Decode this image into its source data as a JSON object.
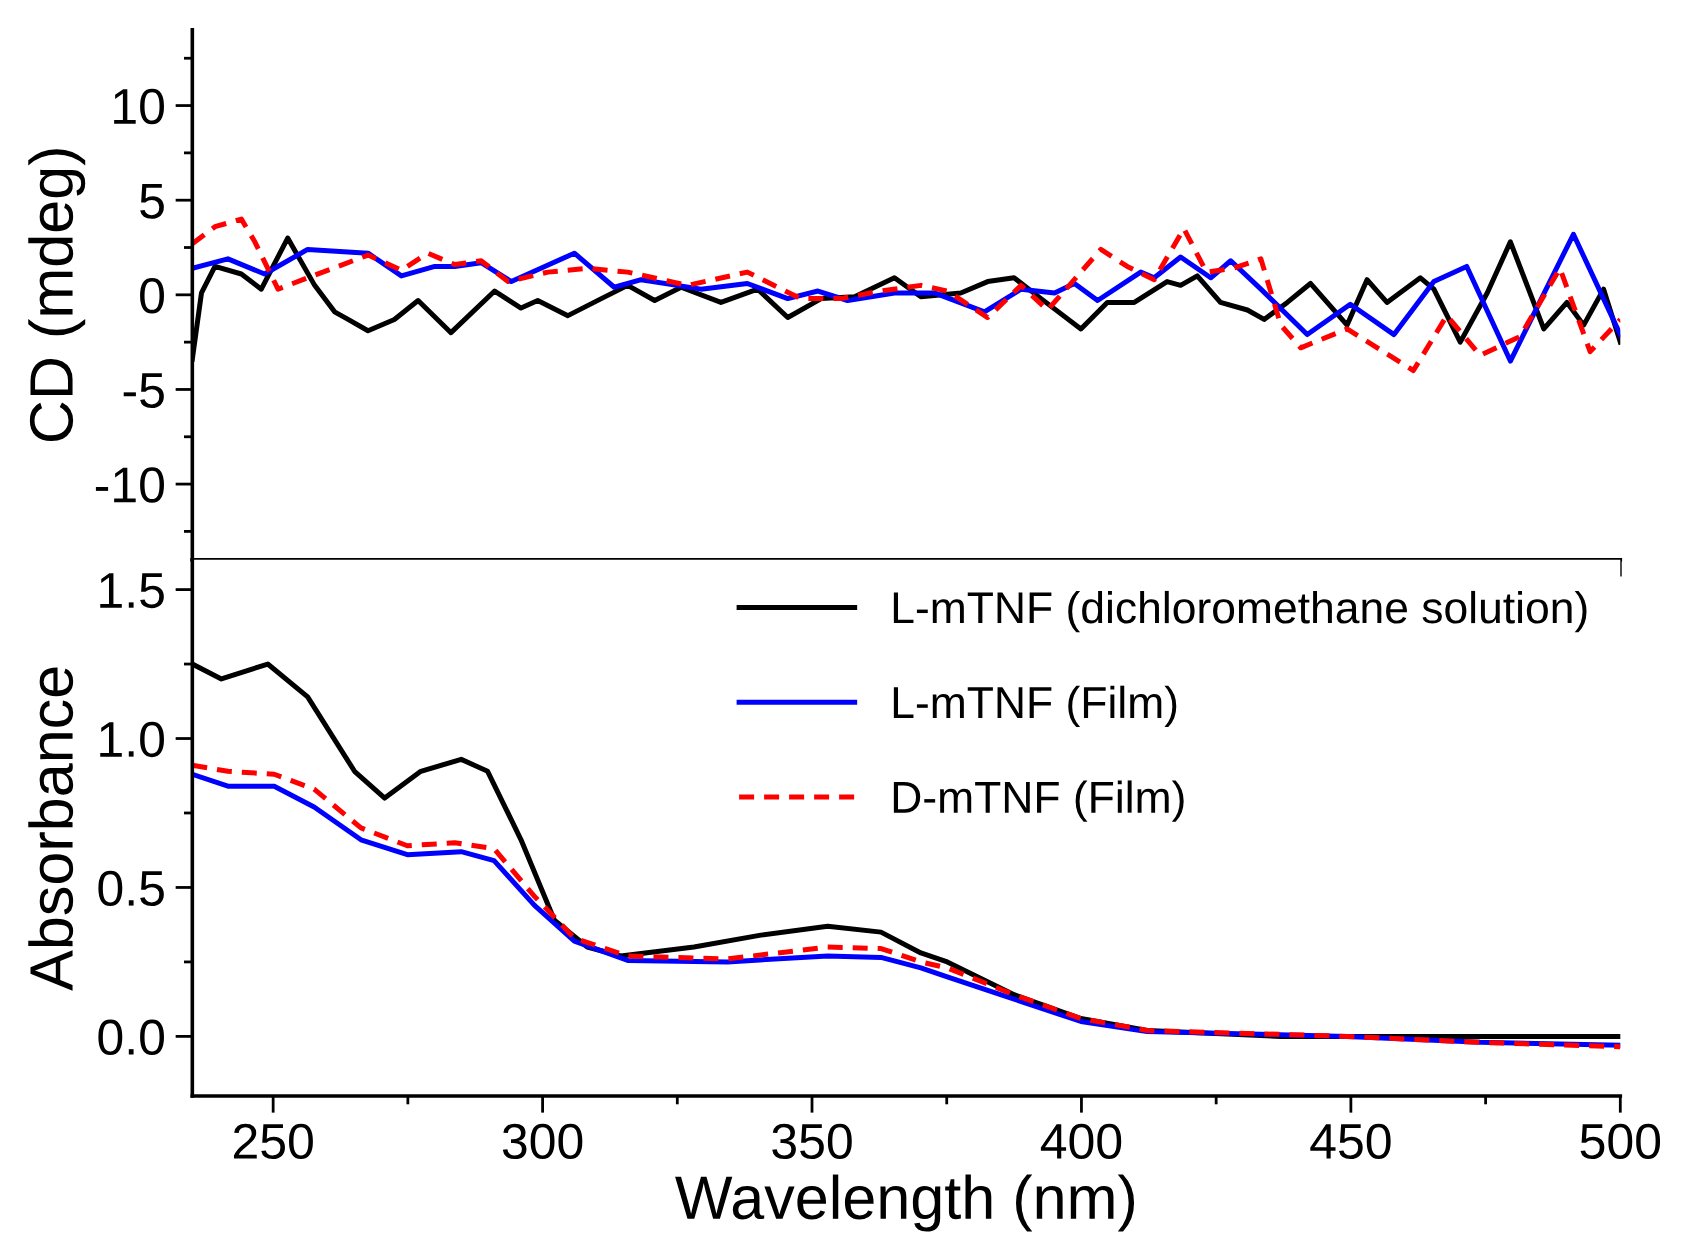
{
  "chart_data": [
    {
      "type": "line",
      "ylabel": "CD (mdeg)",
      "xlim": [
        235,
        500
      ],
      "ylim": [
        -14,
        14
      ],
      "xticks": [
        250,
        300,
        350,
        400,
        450,
        500
      ],
      "yticks": [
        {
          "value": -12.5,
          "label": null
        },
        -10,
        {
          "value": -7.5,
          "label": null
        },
        -5,
        {
          "value": -2.5,
          "label": null
        },
        0,
        {
          "value": 2.5,
          "label": null
        },
        5,
        {
          "value": 7.5,
          "label": null
        },
        10,
        {
          "value": 12.5,
          "label": null
        }
      ],
      "tick_labels": "y",
      "grid": false,
      "legend": false,
      "series": [
        {
          "color": "#000000",
          "line_style": "solid",
          "x": [
            235,
            236.7,
            239.2,
            244.1,
            247.8,
            252.7,
            257.7,
            261.4,
            263.9,
            267.6,
            272.5,
            276.9,
            283,
            291.1,
            296,
            299.1,
            304.7,
            310.9,
            315.8,
            320.8,
            325.7,
            333.1,
            339.9,
            345.5,
            351.7,
            357.9,
            365.3,
            370.2,
            377.6,
            382.6,
            387.5,
            392.5,
            399.9,
            404.8,
            409.8,
            415.9,
            418.4,
            421.5,
            425.8,
            430.8,
            433.9,
            438.2,
            442.5,
            449.3,
            453,
            456.7,
            462.9,
            465.4,
            470.3,
            475.3,
            479.6,
            485.8,
            490.1,
            493.2,
            496.9,
            500
          ],
          "values": [
            -3.4,
            0.1,
            1.5,
            1.1,
            0.3,
            3.0,
            0.5,
            -0.9,
            -1.3,
            -1.9,
            -1.3,
            -0.3,
            -2.0,
            0.2,
            -0.7,
            -0.3,
            -1.1,
            -0.2,
            0.5,
            -0.3,
            0.4,
            -0.4,
            0.3,
            -1.2,
            -0.2,
            -0.1,
            0.9,
            -0.1,
            0.1,
            0.7,
            0.9,
            -0.2,
            -1.8,
            -0.4,
            -0.4,
            0.7,
            0.5,
            1.0,
            -0.4,
            -0.8,
            -1.3,
            -0.4,
            0.6,
            -1.6,
            0.8,
            -0.4,
            0.9,
            0.3,
            -2.5,
            0.1,
            2.8,
            -1.8,
            -0.4,
            -1.6,
            0.3,
            -2.5
          ]
        },
        {
          "color": "#0000ff",
          "line_style": "solid",
          "x": [
            235,
            241.6,
            248.4,
            256.4,
            267.6,
            273.8,
            280,
            283.7,
            288.6,
            294.2,
            305.9,
            313.3,
            318.3,
            329.4,
            338,
            345.5,
            351.1,
            356.6,
            365.3,
            372.7,
            382,
            388.8,
            395,
            398.7,
            403,
            411,
            413.5,
            418.4,
            424,
            427.7,
            433.3,
            441.9,
            449.9,
            458,
            465.4,
            471.5,
            479.6,
            491.3,
            500
          ],
          "values": [
            1.4,
            1.9,
            1.1,
            2.4,
            2.2,
            1.0,
            1.5,
            1.5,
            1.7,
            0.7,
            2.2,
            0.4,
            0.8,
            0.3,
            0.6,
            -0.2,
            0.2,
            -0.3,
            0.1,
            0.1,
            -0.9,
            0.3,
            0.1,
            0.6,
            -0.3,
            1.2,
            0.9,
            2.0,
            0.9,
            1.8,
            0.3,
            -2.1,
            -0.5,
            -2.1,
            0.7,
            1.5,
            -3.5,
            3.2,
            -2.1
          ]
        },
        {
          "color": "#ff0000",
          "line_style": "dashed",
          "x": [
            235,
            239.2,
            244.1,
            246.6,
            250.9,
            256.4,
            267.6,
            273.8,
            278.7,
            283.7,
            288.6,
            293.6,
            301,
            308.4,
            315.8,
            326.9,
            338,
            347.9,
            355.3,
            362.8,
            370.2,
            375.1,
            382.6,
            388.8,
            393.7,
            403.6,
            408.5,
            413.5,
            419,
            423.2,
            428.2,
            433.3,
            437,
            440.7,
            449.3,
            461.6,
            467.8,
            474,
            481.4,
            488.8,
            494.4,
            500
          ],
          "values": [
            2.7,
            3.6,
            4.0,
            2.8,
            0.3,
            0.9,
            2.1,
            1.3,
            2.2,
            1.6,
            1.8,
            0.7,
            1.2,
            1.4,
            1.2,
            0.5,
            1.2,
            -0.2,
            -0.2,
            0.2,
            0.5,
            0.2,
            -1.2,
            0.5,
            -0.8,
            2.4,
            1.5,
            0.8,
            3.5,
            1.2,
            1.4,
            1.9,
            -1.6,
            -2.8,
            -1.8,
            -4.0,
            -1.1,
            -3.2,
            -2.2,
            1.4,
            -3.0,
            -1.3
          ]
        }
      ]
    },
    {
      "type": "line",
      "xlabel": "Wavelength (nm)",
      "ylabel": "Absorbance",
      "xlim": [
        235,
        500
      ],
      "ylim": [
        -0.2,
        1.6
      ],
      "xticks": [
        250,
        {
          "value": 275,
          "label": null
        },
        300,
        {
          "value": 325,
          "label": null
        },
        350,
        {
          "value": 375,
          "label": null
        },
        400,
        {
          "value": 425,
          "label": null
        },
        450,
        {
          "value": 475,
          "label": null
        },
        500
      ],
      "yticks": [
        {
          "value": 0,
          "label": "0.0"
        },
        {
          "value": 0.25,
          "label": null
        },
        0.5,
        {
          "value": 0.75,
          "label": null
        },
        {
          "value": 1,
          "label": "1.0"
        },
        {
          "value": 1.25,
          "label": null
        },
        1.5
      ],
      "grid": false,
      "legend": "top right",
      "series": [
        {
          "name": "L-mTNF (dichloromethane solution)",
          "color": "#000000",
          "line_style": "solid",
          "x": [
            235,
            240.4,
            249,
            256.4,
            265.1,
            270.7,
            277.4,
            284.9,
            289.8,
            296,
            302.2,
            308.3,
            314.5,
            328.1,
            340.5,
            352.9,
            362.8,
            370.2,
            375.1,
            387.5,
            399.9,
            412.2,
            437,
            500
          ],
          "values": [
            1.25,
            1.2,
            1.25,
            1.14,
            0.89,
            0.8,
            0.89,
            0.93,
            0.89,
            0.66,
            0.39,
            0.3,
            0.27,
            0.3,
            0.34,
            0.37,
            0.35,
            0.28,
            0.25,
            0.14,
            0.06,
            0.02,
            0.0,
            0.0
          ]
        },
        {
          "name": "L-mTNF (Film)",
          "color": "#0000ff",
          "line_style": "solid",
          "x": [
            235,
            241.6,
            250.2,
            257.6,
            266.3,
            274.9,
            284.9,
            291,
            298.5,
            305.9,
            315.8,
            334.3,
            352.9,
            362.8,
            370.2,
            375.1,
            387.5,
            399.9,
            412.2,
            449.3,
            474,
            500
          ],
          "values": [
            0.88,
            0.84,
            0.84,
            0.77,
            0.66,
            0.61,
            0.62,
            0.59,
            0.44,
            0.32,
            0.255,
            0.25,
            0.27,
            0.265,
            0.23,
            0.2,
            0.125,
            0.05,
            0.016,
            0.0,
            -0.02,
            -0.03
          ]
        },
        {
          "name": "D-mTNF (Film)",
          "color": "#ff0000",
          "line_style": "dashed",
          "x": [
            235,
            241.6,
            250.2,
            257.6,
            266.3,
            274.9,
            283.7,
            291,
            298.5,
            305.9,
            315.8,
            334.3,
            352.9,
            362.8,
            370.2,
            375.1,
            387.5,
            399.9,
            412.2,
            449.3,
            474,
            500
          ],
          "values": [
            0.91,
            0.89,
            0.88,
            0.83,
            0.7,
            0.64,
            0.65,
            0.63,
            0.47,
            0.33,
            0.27,
            0.26,
            0.3,
            0.295,
            0.25,
            0.23,
            0.14,
            0.06,
            0.02,
            0.0,
            -0.02,
            -0.035
          ]
        }
      ]
    }
  ]
}
